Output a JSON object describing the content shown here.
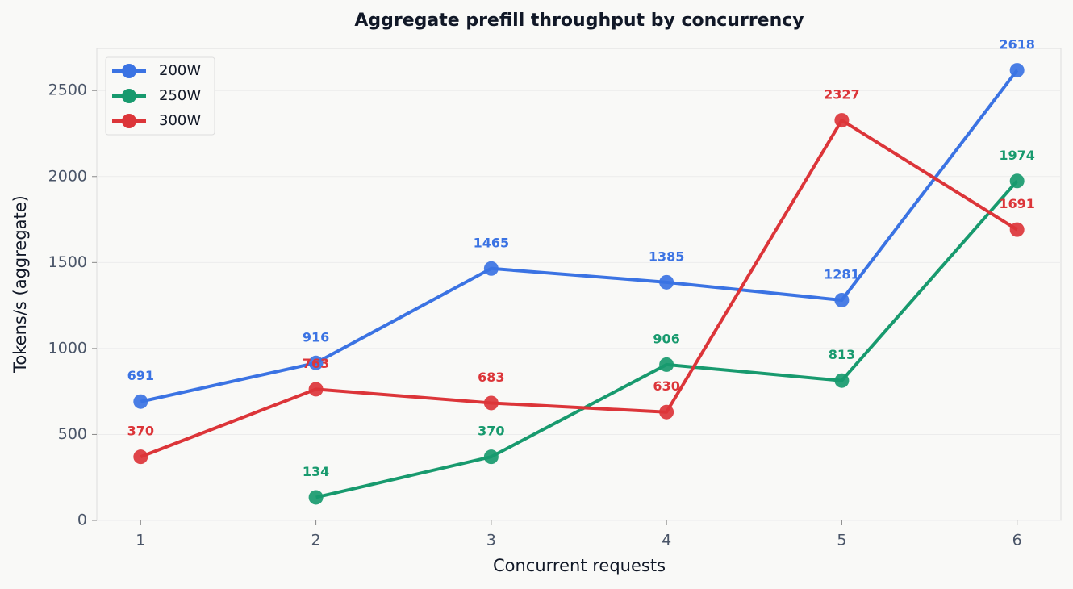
{
  "chart_data": {
    "type": "line",
    "title": "Aggregate prefill throughput by concurrency",
    "x_label": "Concurrent requests",
    "y_label": "Tokens/s (aggregate)",
    "x": [
      1,
      2,
      3,
      4,
      5,
      6
    ],
    "series": [
      {
        "name": "200W",
        "color": "#3b73e3",
        "values": [
          691,
          916,
          1465,
          1385,
          1281,
          2618
        ]
      },
      {
        "name": "250W",
        "color": "#189a6e",
        "values": [
          null,
          134,
          370,
          906,
          813,
          1974
        ]
      },
      {
        "name": "300W",
        "color": "#dc3539",
        "values": [
          370,
          763,
          683,
          630,
          2327,
          1691
        ]
      }
    ],
    "xlim": [
      0.75,
      6.25
    ],
    "ylim": [
      0,
      2745
    ],
    "xticks": [
      1,
      2,
      3,
      4,
      5,
      6
    ],
    "yticks": [
      0,
      500,
      1000,
      1500,
      2000,
      2500
    ],
    "grid": true,
    "legend": "upper-left"
  }
}
